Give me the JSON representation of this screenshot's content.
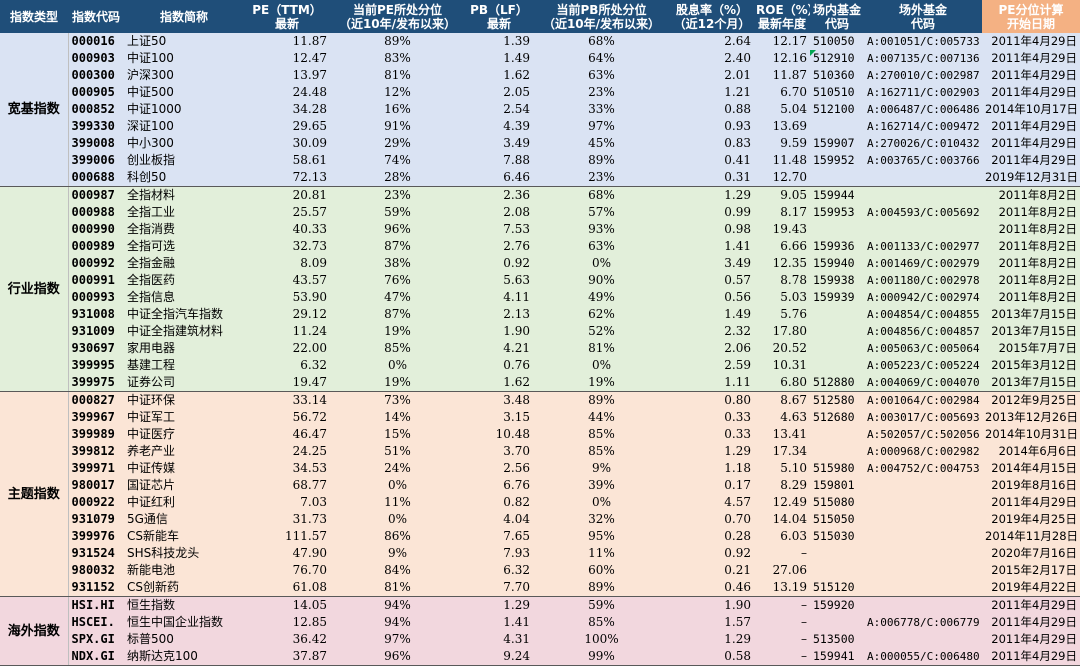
{
  "header": [
    [
      "指数类型"
    ],
    [
      "指数代码"
    ],
    [
      "指数简称"
    ],
    [
      "PE（TTM）",
      "最新"
    ],
    [
      "当前PE所处分位",
      "（近10年/发布以来）"
    ],
    [
      "PB（LF）",
      "最新"
    ],
    [
      "当前PB所处分位",
      "（近10年/发布以来）"
    ],
    [
      "股息率（%）",
      "（近12个月）"
    ],
    [
      "ROE（%）",
      "最新年度"
    ],
    [
      "场内基金",
      "代码"
    ],
    [
      "场外基金",
      "代码"
    ],
    [
      "PE分位计算",
      "开始日期"
    ]
  ],
  "groups": [
    {
      "key": "broad",
      "name": "宽基指数",
      "rows": [
        [
          "000016",
          "上证50",
          "11.87",
          "89%",
          "1.39",
          "68%",
          "2.64",
          "12.17",
          "510050",
          "A:001051/C:005733",
          "2011年4月29日"
        ],
        [
          "000903",
          "中证100",
          "12.47",
          "83%",
          "1.49",
          "64%",
          "2.40",
          "12.16",
          "512910",
          "A:007135/C:007136",
          "2011年4月29日"
        ],
        [
          "000300",
          "沪深300",
          "13.97",
          "81%",
          "1.62",
          "63%",
          "2.01",
          "11.87",
          "510360",
          "A:270010/C:002987",
          "2011年4月29日"
        ],
        [
          "000905",
          "中证500",
          "24.48",
          "12%",
          "2.05",
          "23%",
          "1.21",
          "6.70",
          "510510",
          "A:162711/C:002903",
          "2011年4月29日"
        ],
        [
          "000852",
          "中证1000",
          "34.28",
          "16%",
          "2.54",
          "33%",
          "0.88",
          "5.04",
          "512100",
          "A:006487/C:006486",
          "2014年10月17日"
        ],
        [
          "399330",
          "深证100",
          "29.65",
          "91%",
          "4.39",
          "97%",
          "0.93",
          "13.69",
          "",
          "A:162714/C:009472",
          "2011年4月29日"
        ],
        [
          "399008",
          "中小300",
          "30.09",
          "29%",
          "3.49",
          "45%",
          "0.83",
          "9.59",
          "159907",
          "A:270026/C:010432",
          "2011年4月29日"
        ],
        [
          "399006",
          "创业板指",
          "58.61",
          "74%",
          "7.88",
          "89%",
          "0.41",
          "11.48",
          "159952",
          "A:003765/C:003766",
          "2011年4月29日"
        ],
        [
          "000688",
          "科创50",
          "72.13",
          "28%",
          "6.46",
          "23%",
          "0.31",
          "12.70",
          "",
          "",
          "2019年12月31日"
        ]
      ]
    },
    {
      "key": "industry",
      "name": "行业指数",
      "rows": [
        [
          "000987",
          "全指材料",
          "20.81",
          "23%",
          "2.36",
          "68%",
          "1.29",
          "9.05",
          "159944",
          "",
          "2011年8月2日"
        ],
        [
          "000988",
          "全指工业",
          "25.57",
          "59%",
          "2.08",
          "57%",
          "0.99",
          "8.17",
          "159953",
          "A:004593/C:005692",
          "2011年8月2日"
        ],
        [
          "000990",
          "全指消费",
          "40.33",
          "96%",
          "7.53",
          "93%",
          "0.98",
          "19.43",
          "",
          "",
          "2011年8月2日"
        ],
        [
          "000989",
          "全指可选",
          "32.73",
          "87%",
          "2.76",
          "63%",
          "1.41",
          "6.66",
          "159936",
          "A:001133/C:002977",
          "2011年8月2日"
        ],
        [
          "000992",
          "全指金融",
          "8.09",
          "38%",
          "0.92",
          "0%",
          "3.49",
          "12.35",
          "159940",
          "A:001469/C:002979",
          "2011年8月2日"
        ],
        [
          "000991",
          "全指医药",
          "43.57",
          "76%",
          "5.63",
          "90%",
          "0.57",
          "8.78",
          "159938",
          "A:001180/C:002978",
          "2011年8月2日"
        ],
        [
          "000993",
          "全指信息",
          "53.90",
          "47%",
          "4.11",
          "49%",
          "0.56",
          "5.03",
          "159939",
          "A:000942/C:002974",
          "2011年8月2日"
        ],
        [
          "931008",
          "中证全指汽车指数",
          "29.12",
          "87%",
          "2.13",
          "62%",
          "1.49",
          "5.76",
          "",
          "A:004854/C:004855",
          "2013年7月15日"
        ],
        [
          "931009",
          "中证全指建筑材料",
          "11.24",
          "19%",
          "1.90",
          "52%",
          "2.32",
          "17.80",
          "",
          "A:004856/C:004857",
          "2013年7月15日"
        ],
        [
          "930697",
          "家用电器",
          "22.00",
          "85%",
          "4.21",
          "81%",
          "2.06",
          "20.52",
          "",
          "A:005063/C:005064",
          "2015年7月7日"
        ],
        [
          "399995",
          "基建工程",
          "6.32",
          "0%",
          "0.76",
          "0%",
          "2.59",
          "10.31",
          "",
          "A:005223/C:005224",
          "2015年3月12日"
        ],
        [
          "399975",
          "证券公司",
          "19.47",
          "19%",
          "1.62",
          "19%",
          "1.11",
          "6.80",
          "512880",
          "A:004069/C:004070",
          "2013年7月15日"
        ]
      ]
    },
    {
      "key": "theme",
      "name": "主题指数",
      "rows": [
        [
          "000827",
          "中证环保",
          "33.14",
          "73%",
          "3.48",
          "89%",
          "0.80",
          "8.67",
          "512580",
          "A:001064/C:002984",
          "2012年9月25日"
        ],
        [
          "399967",
          "中证军工",
          "56.72",
          "14%",
          "3.15",
          "44%",
          "0.33",
          "4.63",
          "512680",
          "A:003017/C:005693",
          "2013年12月26日"
        ],
        [
          "399989",
          "中证医疗",
          "46.47",
          "15%",
          "10.48",
          "85%",
          "0.33",
          "13.41",
          "",
          "A:502057/C:502056",
          "2014年10月31日"
        ],
        [
          "399812",
          "养老产业",
          "24.25",
          "51%",
          "3.70",
          "85%",
          "1.29",
          "17.34",
          "",
          "A:000968/C:002982",
          "2014年6月6日"
        ],
        [
          "399971",
          "中证传媒",
          "34.53",
          "24%",
          "2.56",
          "9%",
          "1.18",
          "5.10",
          "515980",
          "A:004752/C:004753",
          "2014年4月15日"
        ],
        [
          "980017",
          "国证芯片",
          "68.77",
          "0%",
          "6.76",
          "39%",
          "0.17",
          "8.29",
          "159801",
          "",
          "2019年8月16日"
        ],
        [
          "000922",
          "中证红利",
          "7.03",
          "11%",
          "0.82",
          "0%",
          "4.57",
          "12.49",
          "515080",
          "",
          "2011年4月29日"
        ],
        [
          "931079",
          "5G通信",
          "31.73",
          "0%",
          "4.04",
          "32%",
          "0.70",
          "14.04",
          "515050",
          "",
          "2019年4月25日"
        ],
        [
          "399976",
          "CS新能车",
          "111.57",
          "86%",
          "7.65",
          "95%",
          "0.28",
          "6.03",
          "515030",
          "",
          "2014年11月28日"
        ],
        [
          "931524",
          "SHS科技龙头",
          "47.90",
          "9%",
          "7.93",
          "11%",
          "0.92",
          "–",
          "",
          "",
          "2020年7月16日"
        ],
        [
          "980032",
          "新能电池",
          "76.70",
          "84%",
          "6.32",
          "60%",
          "0.21",
          "27.06",
          "",
          "",
          "2015年2月17日"
        ],
        [
          "931152",
          "CS创新药",
          "61.08",
          "81%",
          "7.70",
          "89%",
          "0.46",
          "13.19",
          "515120",
          "",
          "2019年4月22日"
        ]
      ]
    },
    {
      "key": "overseas",
      "name": "海外指数",
      "rows": [
        [
          "HSI.HI",
          "恒生指数",
          "14.05",
          "94%",
          "1.29",
          "59%",
          "1.90",
          "–",
          "159920",
          "",
          "2011年4月29日"
        ],
        [
          "HSCEI.",
          "恒生中国企业指数",
          "12.85",
          "94%",
          "1.41",
          "85%",
          "1.57",
          "–",
          "",
          "A:006778/C:006779",
          "2011年4月29日"
        ],
        [
          "SPX.GI",
          "标普500",
          "36.42",
          "97%",
          "4.31",
          "100%",
          "1.29",
          "–",
          "513500",
          "",
          "2011年4月29日"
        ],
        [
          "NDX.GI",
          "纳斯达克100",
          "37.87",
          "96%",
          "9.24",
          "99%",
          "0.58",
          "–",
          "159941",
          "A:000055/C:006480",
          "2011年4月29日"
        ]
      ]
    }
  ],
  "colors": {
    "header": "#1f4e79",
    "header_highlight": "#f4b183",
    "broad": "#dae3f3",
    "industry": "#e2efda",
    "theme": "#fbe5d6",
    "overseas": "#f2d7de",
    "comment_marker": "#00a651"
  }
}
